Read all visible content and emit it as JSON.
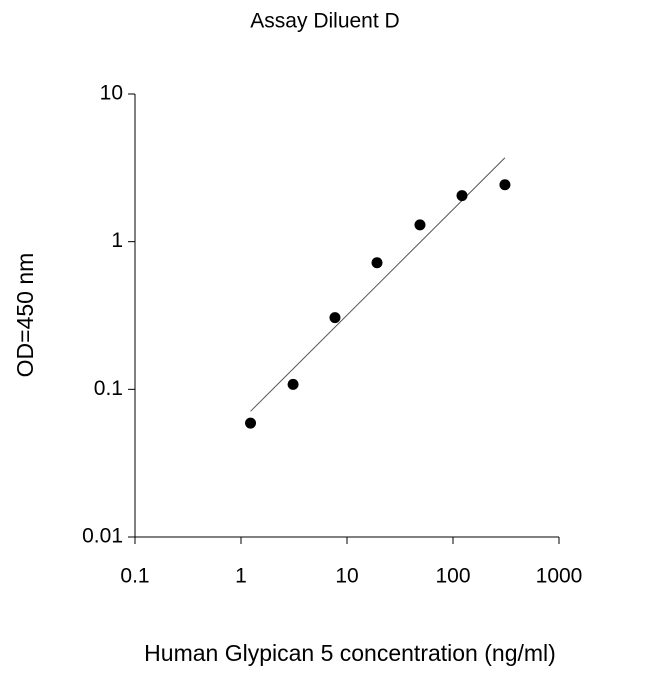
{
  "chart_data": {
    "type": "scatter",
    "title": "Assay Diluent D",
    "x_label": "Human Glypican 5 concentration (ng/ml)",
    "y_label": "OD=450 nm",
    "x": [
      1.23,
      3.1,
      7.7,
      19.2,
      48.8,
      121.6,
      309
    ],
    "series": [
      {
        "color": "#000000",
        "values": [
          0.059,
          0.108,
          0.306,
          0.72,
          1.3,
          2.05,
          2.43
        ]
      }
    ],
    "fit": {
      "x": [
        1.23,
        309
      ],
      "y": [
        0.071,
        3.7
      ],
      "color": "#555555"
    },
    "xlim": [
      0.1,
      1000
    ],
    "ylim": [
      0.01,
      10
    ],
    "xticks": [
      0.1,
      1,
      10,
      100,
      1000
    ],
    "yticks": [
      0.01,
      0.1,
      1,
      10
    ],
    "xscale": "log",
    "yscale": "log",
    "grid": false
  }
}
